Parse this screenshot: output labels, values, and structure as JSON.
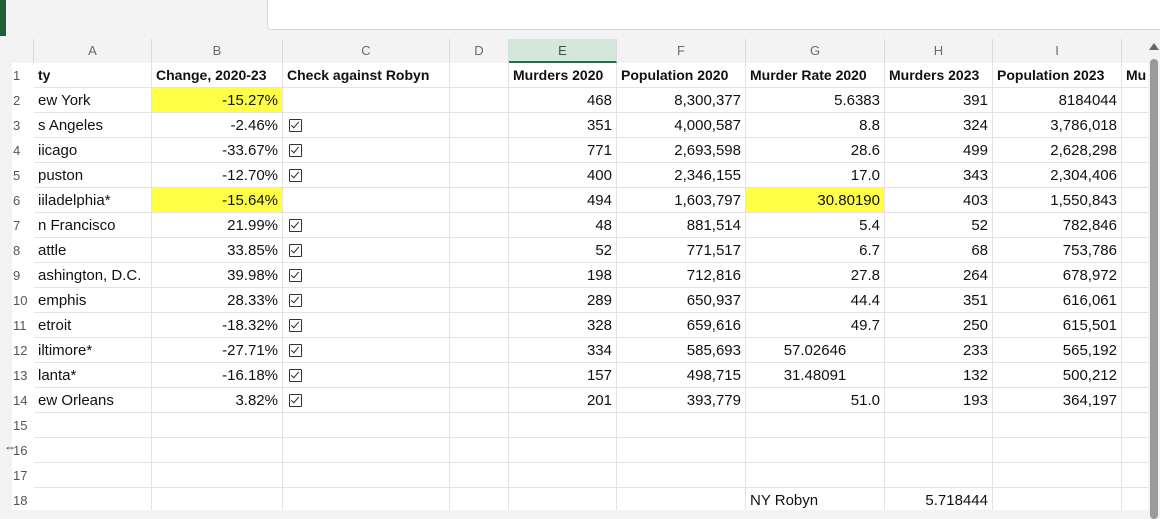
{
  "columns": [
    "A",
    "B",
    "C",
    "D",
    "E",
    "F",
    "G",
    "H",
    "I"
  ],
  "header_row": [
    "ty",
    "Change, 2020-23",
    "Check against Robyn",
    "",
    "Murders 2020",
    "Population 2020",
    "Murder Rate 2020",
    "Murders 2023",
    "Population 2023",
    "Mu"
  ],
  "rows": [
    {
      "num": "2",
      "a": "ew York",
      "b": "-15.27%",
      "c": "",
      "e": "468",
      "f": "8,300,377",
      "g": "5.6383",
      "h": "391",
      "i": "8184044"
    },
    {
      "num": "3",
      "a": "s Angeles",
      "b": "-2.46%",
      "c": "check",
      "e": "351",
      "f": "4,000,587",
      "g": "8.8",
      "h": "324",
      "i": "3,786,018"
    },
    {
      "num": "4",
      "a": "iicago",
      "b": "-33.67%",
      "c": "check",
      "e": "771",
      "f": "2,693,598",
      "g": "28.6",
      "h": "499",
      "i": "2,628,298"
    },
    {
      "num": "5",
      "a": "puston",
      "b": "-12.70%",
      "c": "check",
      "e": "400",
      "f": "2,346,155",
      "g": "17.0",
      "h": "343",
      "i": "2,304,406"
    },
    {
      "num": "6",
      "a": "iiladelphia*",
      "b": "-15.64%",
      "c": "",
      "e": "494",
      "f": "1,603,797",
      "g": "30.80190",
      "h": "403",
      "i": "1,550,843"
    },
    {
      "num": "7",
      "a": "n Francisco",
      "b": "21.99%",
      "c": "check",
      "e": "48",
      "f": "881,514",
      "g": "5.4",
      "h": "52",
      "i": "782,846"
    },
    {
      "num": "8",
      "a": "attle",
      "b": "33.85%",
      "c": "check",
      "e": "52",
      "f": "771,517",
      "g": "6.7",
      "h": "68",
      "i": "753,786"
    },
    {
      "num": "9",
      "a": "ashington, D.C.",
      "b": "39.98%",
      "c": "check",
      "e": "198",
      "f": "712,816",
      "g": "27.8",
      "h": "264",
      "i": "678,972"
    },
    {
      "num": "10",
      "a": "emphis",
      "b": "28.33%",
      "c": "check",
      "e": "289",
      "f": "650,937",
      "g": "44.4",
      "h": "351",
      "i": "616,061"
    },
    {
      "num": "11",
      "a": "etroit",
      "b": "-18.32%",
      "c": "check",
      "e": "328",
      "f": "659,616",
      "g": "49.7",
      "h": "250",
      "i": "615,501"
    },
    {
      "num": "12",
      "a": "iltimore*",
      "b": "-27.71%",
      "c": "check",
      "e": "334",
      "f": "585,693",
      "g": "57.02646",
      "h": "233",
      "i": "565,192"
    },
    {
      "num": "13",
      "a": "lanta*",
      "b": "-16.18%",
      "c": "check",
      "e": "157",
      "f": "498,715",
      "g": "31.48091",
      "h": "132",
      "i": "500,212"
    },
    {
      "num": "14",
      "a": "ew Orleans",
      "b": "3.82%",
      "c": "check",
      "e": "201",
      "f": "393,779",
      "g": "51.0",
      "h": "193",
      "i": "364,197"
    }
  ],
  "empty_rows": [
    "15",
    "16",
    "17"
  ],
  "row18": {
    "num": "18",
    "g": "NY Robyn",
    "h": "5.718444"
  },
  "header_num": "1",
  "colors": {
    "highlight": "#ffff45",
    "selected_col": "#d3e7db",
    "excel_green": "#217346"
  }
}
